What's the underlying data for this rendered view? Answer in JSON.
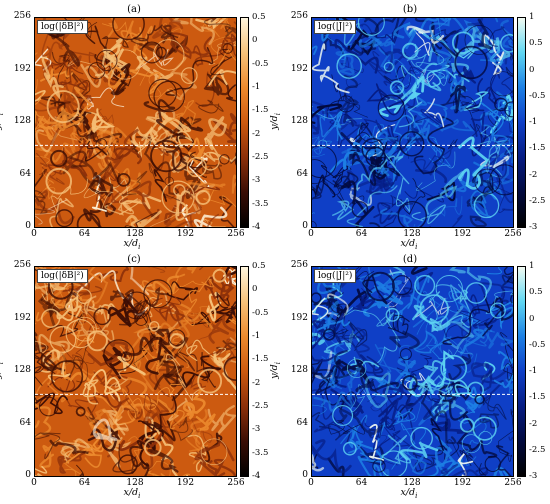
{
  "colors": {
    "orange_scale": [
      "#fff6de",
      "#f6c27a",
      "#ec8a2e",
      "#cc5a10",
      "#8c300a",
      "#3a0d04",
      "#000000"
    ],
    "blue_scale": [
      "#f2fbf2",
      "#5fd6f2",
      "#1d7fe4",
      "#0f3fc6",
      "#061c82",
      "#020a3e",
      "#000000"
    ],
    "dashed_line": "#ffffff"
  },
  "panels": [
    {
      "letter": "(a)",
      "field_label": "log(|δB|²)",
      "colormap": "orange",
      "xlabel": "x/d",
      "xlabel_sub": "i",
      "ylabel": "y/d",
      "ylabel_sub": "i",
      "xticks": [
        "0",
        "64",
        "128",
        "192",
        "256"
      ],
      "yticks": [
        "256",
        "192",
        "128",
        "64",
        "0"
      ],
      "cbar_ticks": [
        "0.5",
        "0",
        "-0.5",
        "-1",
        "-1.5",
        "-2",
        "-2.5",
        "-3",
        "-3.5",
        "-4"
      ]
    },
    {
      "letter": "(b)",
      "field_label": "log(|J|²)",
      "colormap": "blue",
      "xlabel": "x/d",
      "xlabel_sub": "i",
      "ylabel": "y/d",
      "ylabel_sub": "i",
      "xticks": [
        "0",
        "64",
        "128",
        "192",
        "256"
      ],
      "yticks": [
        "256",
        "192",
        "128",
        "64",
        "0"
      ],
      "cbar_ticks": [
        "1",
        "0.5",
        "0",
        "-0.5",
        "-1",
        "-1.5",
        "-2",
        "-2.5",
        "-3"
      ]
    },
    {
      "letter": "(c)",
      "field_label": "log(|δB|²)",
      "colormap": "orange",
      "xlabel": "x/d",
      "xlabel_sub": "i",
      "ylabel": "y/d",
      "ylabel_sub": "i",
      "xticks": [
        "0",
        "64",
        "128",
        "192",
        "256"
      ],
      "yticks": [
        "256",
        "192",
        "128",
        "64",
        "0"
      ],
      "cbar_ticks": [
        "0.5",
        "0",
        "-0.5",
        "-1",
        "-1.5",
        "-2",
        "-2.5",
        "-3",
        "-3.5",
        "-4"
      ]
    },
    {
      "letter": "(d)",
      "field_label": "log(|J|²)",
      "colormap": "blue",
      "xlabel": "x/d",
      "xlabel_sub": "i",
      "ylabel": "y/d",
      "ylabel_sub": "i",
      "xticks": [
        "0",
        "64",
        "128",
        "192",
        "256"
      ],
      "yticks": [
        "256",
        "192",
        "128",
        "64",
        "0"
      ],
      "cbar_ticks": [
        "1",
        "0.5",
        "0",
        "-0.5",
        "-1",
        "-1.5",
        "-2",
        "-2.5",
        "-3"
      ]
    }
  ]
}
